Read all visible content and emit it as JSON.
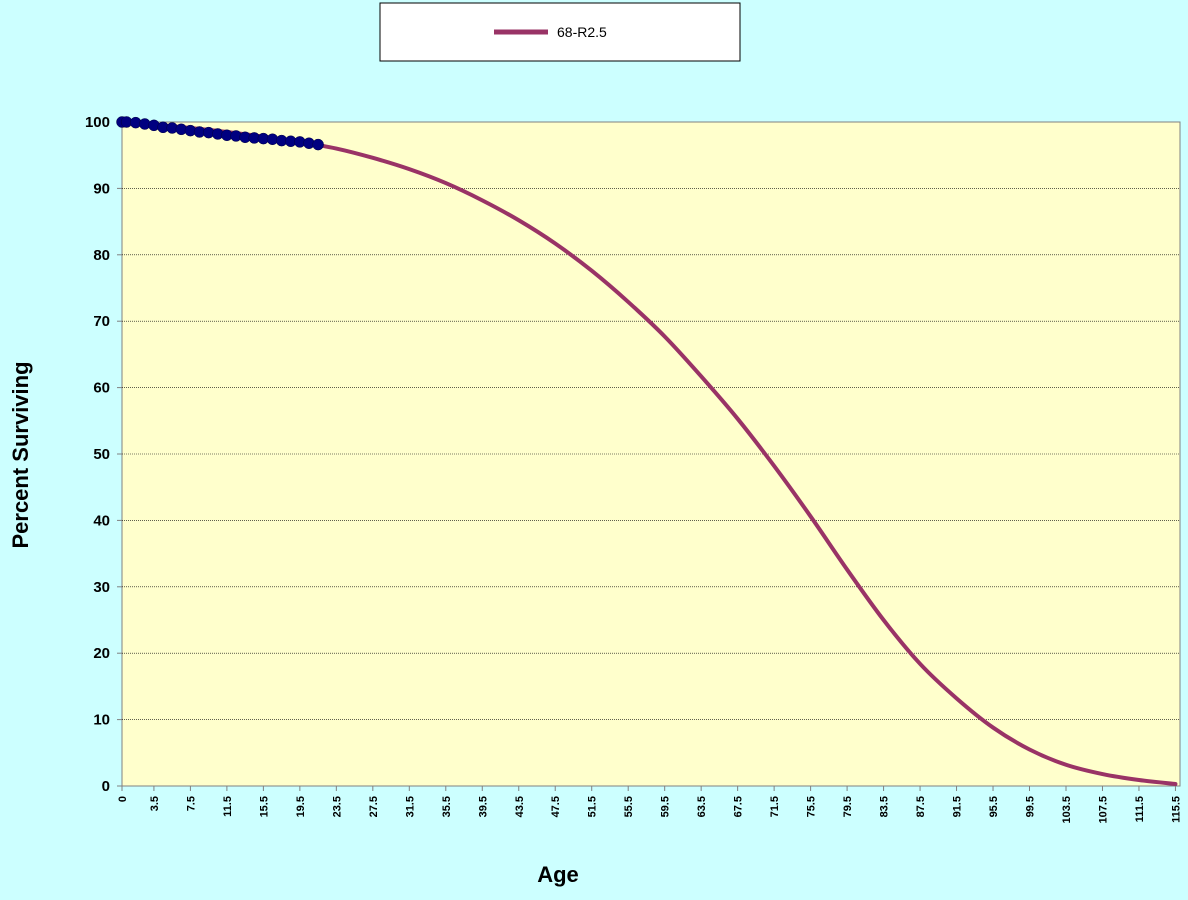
{
  "chart_data": {
    "type": "line",
    "title": "",
    "xlabel": "Age",
    "ylabel": "Percent Surviving",
    "ylim": [
      0,
      100
    ],
    "xlim": [
      0,
      116
    ],
    "yticks": [
      "0",
      "10",
      "20",
      "30",
      "40",
      "50",
      "60",
      "70",
      "80",
      "90",
      "100"
    ],
    "xticks": [
      "0",
      "3.5",
      "7.5",
      "11.5",
      "15.5",
      "19.5",
      "23.5",
      "27.5",
      "31.5",
      "35.5",
      "39.5",
      "43.5",
      "47.5",
      "51.5",
      "55.5",
      "59.5",
      "63.5",
      "67.5",
      "71.5",
      "75.5",
      "79.5",
      "83.5",
      "87.5",
      "91.5",
      "95.5",
      "99.5",
      "103.5",
      "107.5",
      "111.5",
      "115.5"
    ],
    "grid": "horizontal",
    "legend_position": "top-center",
    "series": [
      {
        "name": "68-R2.5",
        "kind": "line",
        "color": "#993366",
        "x": [
          0,
          3.5,
          7.5,
          11.5,
          15.5,
          19.5,
          23.5,
          27.5,
          31.5,
          35.5,
          39.5,
          43.5,
          47.5,
          51.5,
          55.5,
          59.5,
          63.5,
          67.5,
          71.5,
          75.5,
          79.5,
          83.5,
          87.5,
          91.5,
          95.5,
          99.5,
          103.5,
          107.5,
          111.5,
          115.5
        ],
        "y": [
          100.0,
          99.6,
          99.1,
          98.5,
          97.8,
          97.0,
          96.0,
          94.6,
          92.9,
          90.8,
          88.2,
          85.2,
          81.7,
          77.6,
          72.9,
          67.7,
          61.7,
          55.3,
          48.2,
          40.6,
          32.6,
          25.0,
          18.4,
          13.2,
          8.8,
          5.5,
          3.2,
          1.8,
          0.9,
          0.3
        ]
      },
      {
        "kind": "scatter",
        "color": "#000080",
        "x": [
          0,
          0.5,
          1.5,
          2.5,
          3.5,
          4.5,
          5.5,
          6.5,
          7.5,
          8.5,
          9.5,
          10.5,
          11.5,
          12.5,
          13.5,
          14.5,
          15.5,
          16.5,
          17.5,
          18.5,
          19.5,
          20.5,
          21.5
        ],
        "y": [
          100.0,
          100.0,
          99.9,
          99.7,
          99.5,
          99.2,
          99.1,
          98.9,
          98.7,
          98.5,
          98.4,
          98.2,
          98.0,
          97.9,
          97.7,
          97.6,
          97.5,
          97.4,
          97.2,
          97.1,
          97.0,
          96.8,
          96.6
        ]
      }
    ]
  }
}
